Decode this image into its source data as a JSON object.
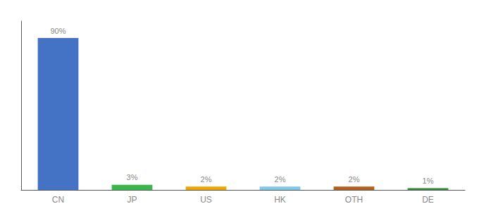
{
  "chart_data": {
    "type": "bar",
    "categories": [
      "CN",
      "JP",
      "US",
      "HK",
      "OTH",
      "DE"
    ],
    "values": [
      90,
      3,
      2,
      2,
      2,
      1
    ],
    "value_labels": [
      "90%",
      "3%",
      "2%",
      "2%",
      "2%",
      "1%"
    ],
    "data_labels": true,
    "colors": [
      "#4472C4",
      "#3CB54A",
      "#F0A500",
      "#7FC8E8",
      "#B5601A",
      "#2E8B3A"
    ],
    "ylim": [
      0,
      100
    ],
    "tick_labels": "x",
    "grid": false
  }
}
